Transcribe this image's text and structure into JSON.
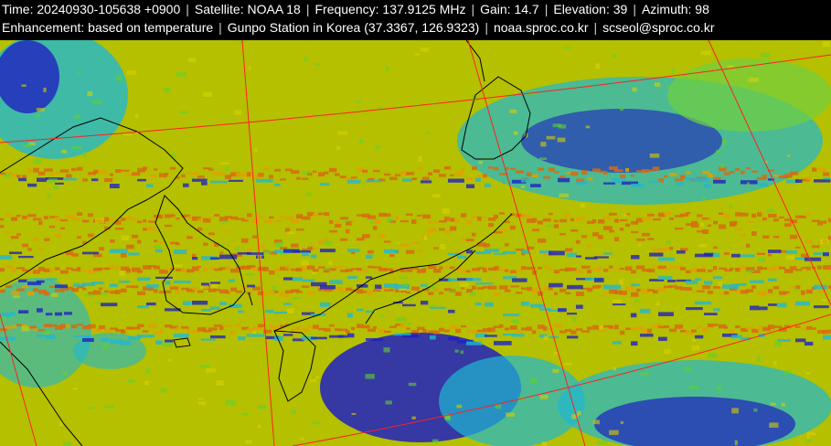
{
  "header": {
    "line1": [
      "Time: 20240930-105638 +0900",
      "Satellite: NOAA 18",
      "Frequency: 137.9125 MHz",
      "Gain: 14.7",
      "Elevation: 39",
      "Azimuth: 98"
    ],
    "line2": [
      "Enhancement: based on temperature",
      "Gunpo Station in Korea (37.3367, 126.9323)",
      "noaa.sproc.co.kr",
      "scseol@sproc.co.kr"
    ],
    "separator": "|"
  },
  "image": {
    "description_colors": {
      "base": "#b8c400",
      "warm_band": "#d86a10",
      "cold": "#2020c0",
      "cool": "#20b8d0",
      "grid": "#ff2020",
      "coast": "#000000"
    }
  }
}
